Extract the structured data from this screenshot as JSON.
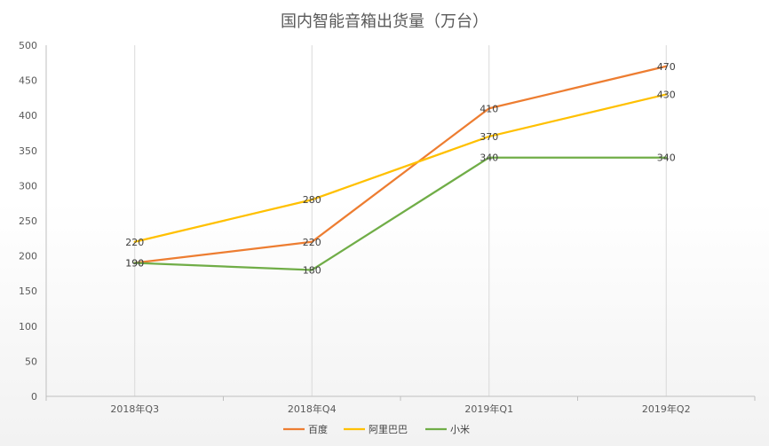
{
  "chart_data": {
    "type": "line",
    "title": "国内智能音箱出货量（万台）",
    "xlabel": "",
    "ylabel": "",
    "categories": [
      "2018年Q3",
      "2018年Q4",
      "2019年Q1",
      "2019年Q2"
    ],
    "ylim": [
      0,
      500
    ],
    "yticks": [
      0,
      50,
      100,
      150,
      200,
      250,
      300,
      350,
      400,
      450,
      500
    ],
    "grid": "vertical",
    "legend": "bottom",
    "series": [
      {
        "name": "百度",
        "values": [
          190,
          220,
          410,
          470
        ],
        "color": "#ED7D31"
      },
      {
        "name": "阿里巴巴",
        "values": [
          220,
          280,
          370,
          430
        ],
        "color": "#FFC000"
      },
      {
        "name": "小米",
        "values": [
          190,
          180,
          340,
          340
        ],
        "color": "#70AD47"
      }
    ]
  }
}
